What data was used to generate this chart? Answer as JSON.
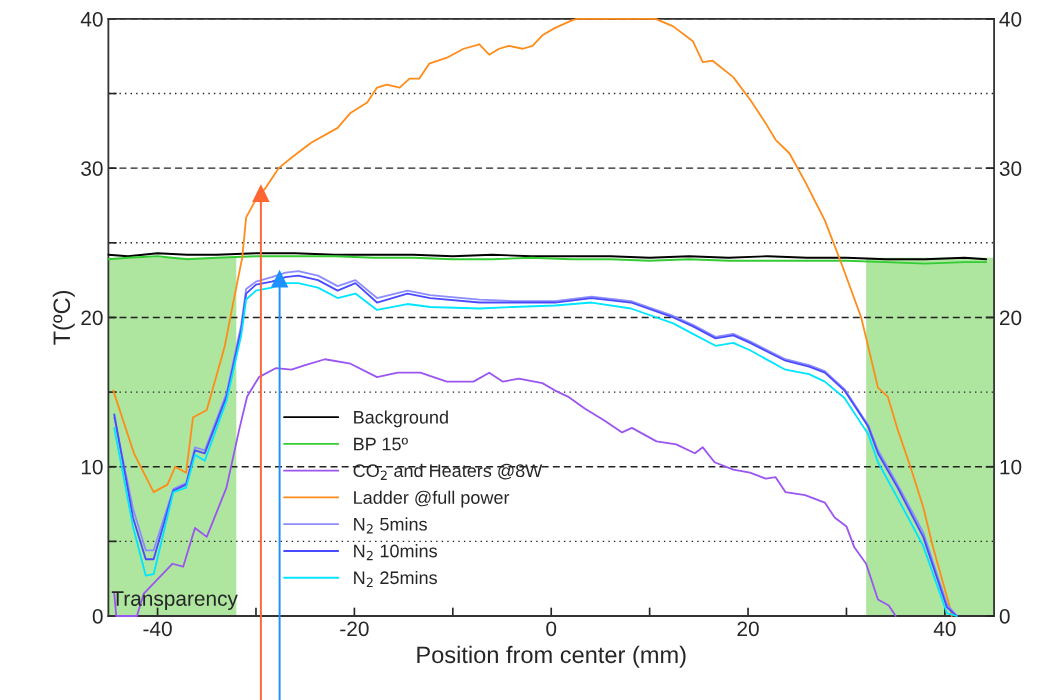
{
  "chart_data": {
    "type": "line",
    "xlabel": "Position from center (mm)",
    "ylabel": "T(ºC)",
    "xlim": [
      -45,
      45
    ],
    "xticks": [
      -40,
      {
        "value": -30,
        "label": null
      },
      -20,
      {
        "value": -10,
        "label": null
      },
      0,
      {
        "value": 10,
        "label": null
      },
      20,
      {
        "value": 30,
        "label": null
      },
      40
    ],
    "ylim": [
      0,
      40
    ],
    "yticks": [
      0,
      {
        "value": 5,
        "label": null
      },
      10,
      {
        "value": 15,
        "label": null
      },
      20,
      {
        "value": 25,
        "label": null
      },
      30,
      {
        "value": 35,
        "label": null
      },
      40
    ],
    "y2lim": [
      0,
      40
    ],
    "y2ticks": [
      0,
      10,
      20,
      30,
      40
    ],
    "grid": "y",
    "legend": "bottom",
    "line_style": "solid",
    "bands": [
      {
        "axis": "x",
        "from": -45,
        "to": -32,
        "label": "Transparency",
        "color": "#4cc72a"
      },
      {
        "axis": "x",
        "from": 32,
        "to": 45,
        "color": "#4cc72a"
      }
    ],
    "ref_lines": [
      {
        "axis": "x",
        "value": -29.5,
        "color": "#ff6633"
      },
      {
        "axis": "x",
        "value": -27.6,
        "color": "#1e90ff"
      }
    ],
    "series": [
      {
        "name": "Background",
        "color": "#000000",
        "x": [
          -45,
          -43,
          -40,
          -37,
          -34,
          -30,
          -26,
          -22,
          -18,
          -14,
          -10,
          -6,
          -2,
          2,
          6,
          10,
          14,
          18,
          22,
          26,
          30,
          34,
          38,
          42,
          44.2
        ],
        "values": [
          24.2,
          24.1,
          24.3,
          24.2,
          24.2,
          24.3,
          24.3,
          24.2,
          24.2,
          24.2,
          24.1,
          24.2,
          24.1,
          24.1,
          24.1,
          24.0,
          24.1,
          24.0,
          24.1,
          24.0,
          24.0,
          23.9,
          23.9,
          24.0,
          23.9
        ]
      },
      {
        "name": "BP 15º",
        "color": "#33cc33",
        "x": [
          -45,
          -43,
          -40,
          -37,
          -34,
          -30,
          -26,
          -22,
          -18,
          -14,
          -10,
          -6,
          -2,
          2,
          6,
          10,
          14,
          18,
          22,
          26,
          30,
          34,
          38,
          42,
          44.2
        ],
        "values": [
          23.9,
          24.0,
          24.1,
          23.9,
          24.0,
          24.1,
          24.1,
          24.1,
          24.0,
          24.0,
          23.9,
          23.9,
          24.0,
          23.9,
          23.9,
          23.8,
          23.9,
          23.8,
          23.8,
          23.8,
          23.8,
          23.7,
          23.6,
          23.7,
          23.7
        ]
      },
      {
        "name": "CO$_{2}$ and Heaters @8W",
        "color": "#9b55f0",
        "x": [
          -44.4,
          -44.2,
          -42.1,
          -41.4,
          -38.5,
          -37.4,
          -36.2,
          -35,
          -33,
          -31.7,
          -30.9,
          -29.7,
          -28,
          -26.4,
          -25,
          -23,
          -20.4,
          -17.7,
          -15.6,
          -13.3,
          -10.6,
          -7.9,
          -6.3,
          -4.9,
          -3.3,
          -0.9,
          0.4,
          1.7,
          3.4,
          5.4,
          7.2,
          8.2,
          10.7,
          12.7,
          14.6,
          15.4,
          16.6,
          18.5,
          20.2,
          21.8,
          22.8,
          23.8,
          25.8,
          27.8,
          28.8,
          30,
          30.8,
          32,
          33.2,
          34.3,
          35.0
        ],
        "values": [
          1.5,
          0,
          0,
          1.5,
          3.5,
          3.3,
          5.9,
          5.3,
          8.6,
          12.5,
          14.7,
          16.0,
          16.6,
          16.5,
          16.8,
          17.2,
          16.9,
          16.0,
          16.3,
          16.3,
          15.7,
          15.7,
          16.3,
          15.7,
          15.9,
          15.6,
          15.1,
          14.7,
          13.9,
          13.1,
          12.3,
          12.6,
          11.7,
          11.5,
          10.9,
          11.3,
          10.3,
          9.8,
          9.6,
          9.2,
          9.3,
          8.3,
          8.1,
          7.6,
          6.6,
          6.0,
          4.6,
          3.5,
          1.1,
          0.7,
          0
        ]
      },
      {
        "name": "Ladder @full power",
        "color": "#ff8c1a",
        "x": [
          -44.5,
          -42.4,
          -40.4,
          -39,
          -38.2,
          -37.1,
          -36.4,
          -35,
          -33.2,
          -32.4,
          -31.4,
          -31,
          -30,
          -29,
          -27.7,
          -26.4,
          -24.4,
          -21.7,
          -20.4,
          -18.7,
          -17.7,
          -16.7,
          -15.4,
          -14.4,
          -13.4,
          -12.4,
          -10.6,
          -8.9,
          -7.3,
          -6.3,
          -5.3,
          -4.3,
          -2.9,
          -1.9,
          -0.9,
          0.4,
          2.1,
          2.6,
          4.1,
          5.6,
          6.9,
          8.1,
          10.4,
          10.6,
          12.4,
          14.4,
          15.4,
          16.4,
          18.5,
          20.2,
          21.8,
          22.8,
          24.2,
          25.8,
          27.8,
          29.5,
          31.5,
          32.3,
          33.2,
          34.2,
          35.2,
          36.5,
          37.8,
          38.8,
          40.5,
          40.7
        ],
        "values": [
          15.1,
          10.9,
          8.3,
          8.8,
          10.0,
          9.6,
          13.3,
          13.8,
          18.0,
          20.7,
          24.0,
          26.7,
          27.9,
          28.7,
          30.0,
          30.7,
          31.7,
          32.7,
          33.7,
          34.4,
          35.4,
          35.6,
          35.4,
          36.0,
          36.0,
          37.0,
          37.4,
          38.0,
          38.3,
          37.6,
          38.0,
          38.2,
          38.0,
          38.2,
          38.9,
          39.4,
          39.9,
          40,
          null,
          null,
          null,
          null,
          null,
          40,
          39.5,
          38.5,
          37.1,
          37.2,
          36.1,
          34.6,
          33.0,
          31.9,
          31.0,
          29.1,
          26.5,
          23.6,
          20.0,
          17.8,
          15.3,
          14.7,
          12.5,
          10.0,
          7.3,
          4.6,
          0.6,
          0
        ]
      },
      {
        "name": "N$_{2}$ 5mins",
        "color": "#8c8cff",
        "x": [
          -44.4,
          -42.5,
          -41.2,
          -40.4,
          -38.4,
          -37.1,
          -36.2,
          -35.2,
          -33,
          -31.5,
          -31,
          -30,
          -28.4,
          -27,
          -25.7,
          -23.7,
          -21.7,
          -19.9,
          -17.7,
          -14.6,
          -12.3,
          -7.3,
          -3.9,
          0.4,
          4.1,
          8.1,
          12.4,
          14.4,
          16.7,
          18.5,
          20.2,
          23.8,
          26.2,
          27.8,
          29.8,
          32.2,
          33.2,
          35.2,
          37.8,
          40.2,
          41.2
        ],
        "values": [
          13.3,
          7.2,
          4.4,
          4.4,
          8.5,
          8.9,
          11.3,
          11.1,
          14.9,
          19.5,
          21.9,
          22.4,
          22.7,
          23.0,
          23.1,
          22.8,
          22.1,
          22.5,
          21.3,
          21.8,
          21.5,
          21.2,
          21.1,
          21.1,
          21.4,
          21.1,
          20.1,
          19.5,
          18.7,
          18.9,
          18.4,
          17.2,
          16.8,
          16.4,
          15.2,
          12.8,
          11.1,
          8.8,
          5.6,
          0.8,
          0
        ]
      },
      {
        "name": "N$_{2}$ 10mins",
        "color": "#4a4aff",
        "x": [
          -44.4,
          -42.5,
          -41.2,
          -40.4,
          -38.4,
          -37.1,
          -36.2,
          -35.2,
          -33,
          -31.5,
          -31,
          -30,
          -28.4,
          -27,
          -25.7,
          -23.7,
          -21.7,
          -19.9,
          -17.7,
          -14.6,
          -12.3,
          -7.3,
          -3.9,
          0.4,
          4.1,
          8.1,
          12.4,
          14.4,
          16.7,
          18.5,
          20.2,
          23.8,
          26.2,
          27.8,
          29.8,
          32.2,
          33.2,
          35.2,
          37.8,
          40.2,
          41.2
        ],
        "values": [
          13.5,
          6.6,
          3.8,
          3.8,
          8.4,
          8.8,
          11.1,
          10.9,
          14.7,
          19.2,
          21.6,
          22.2,
          22.4,
          22.7,
          22.8,
          22.5,
          21.8,
          22.3,
          21.0,
          21.6,
          21.3,
          21.0,
          21.0,
          21.0,
          21.3,
          21.0,
          20.0,
          19.4,
          18.6,
          18.8,
          18.3,
          17.1,
          16.7,
          16.3,
          15.1,
          12.7,
          10.9,
          8.6,
          5.3,
          0.6,
          0
        ]
      },
      {
        "name": "N$_{2}$ 25mins",
        "color": "#00e5ff",
        "x": [
          -44.4,
          -42.5,
          -41.2,
          -40.4,
          -38.4,
          -37.1,
          -36.2,
          -35.2,
          -33,
          -31.5,
          -31,
          -30,
          -28.4,
          -27,
          -25.7,
          -23.7,
          -21.7,
          -19.9,
          -17.7,
          -14.6,
          -12.3,
          -7.3,
          -3.9,
          0.4,
          4.1,
          8.1,
          12.4,
          14.4,
          16.7,
          18.5,
          20.2,
          23.8,
          26.2,
          27.8,
          29.8,
          32.2,
          33.2,
          35.2,
          37.8,
          40.2,
          41.2
        ],
        "values": [
          12.6,
          6.0,
          2.7,
          2.8,
          8.3,
          8.6,
          10.8,
          10.4,
          14.4,
          18.8,
          21.2,
          21.8,
          22.0,
          22.3,
          22.3,
          22.0,
          21.3,
          21.6,
          20.5,
          20.9,
          20.7,
          20.6,
          20.7,
          20.8,
          21.0,
          20.6,
          19.6,
          18.9,
          18.1,
          18.3,
          17.8,
          16.5,
          16.2,
          15.7,
          14.6,
          12.2,
          10.3,
          7.9,
          4.7,
          0.2,
          0
        ]
      }
    ]
  }
}
